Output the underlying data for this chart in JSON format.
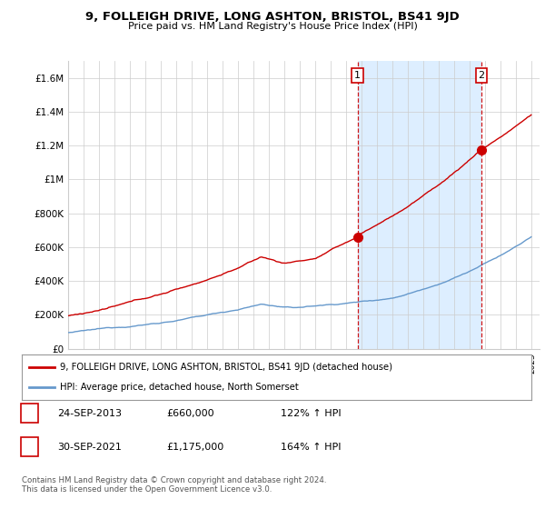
{
  "title": "9, FOLLEIGH DRIVE, LONG ASHTON, BRISTOL, BS41 9JD",
  "subtitle": "Price paid vs. HM Land Registry's House Price Index (HPI)",
  "red_label": "9, FOLLEIGH DRIVE, LONG ASHTON, BRISTOL, BS41 9JD (detached house)",
  "blue_label": "HPI: Average price, detached house, North Somerset",
  "sale1_date": "24-SEP-2013",
  "sale1_price": 660000,
  "sale1_pct": "122% ↑ HPI",
  "sale2_date": "30-SEP-2021",
  "sale2_price": 1175000,
  "sale2_pct": "164% ↑ HPI",
  "footnote": "Contains HM Land Registry data © Crown copyright and database right 2024.\nThis data is licensed under the Open Government Licence v3.0.",
  "red_color": "#cc0000",
  "blue_color": "#6699cc",
  "shade_color": "#ddeeff",
  "vline_color": "#cc0000",
  "background_color": "#ffffff",
  "grid_color": "#cccccc",
  "ylim": [
    0,
    1700000
  ],
  "yticks": [
    0,
    200000,
    400000,
    600000,
    800000,
    1000000,
    1200000,
    1400000,
    1600000
  ],
  "x_start_year": 1995,
  "x_end_year": 2025,
  "sale1_x": 2013.73,
  "sale2_x": 2021.73
}
